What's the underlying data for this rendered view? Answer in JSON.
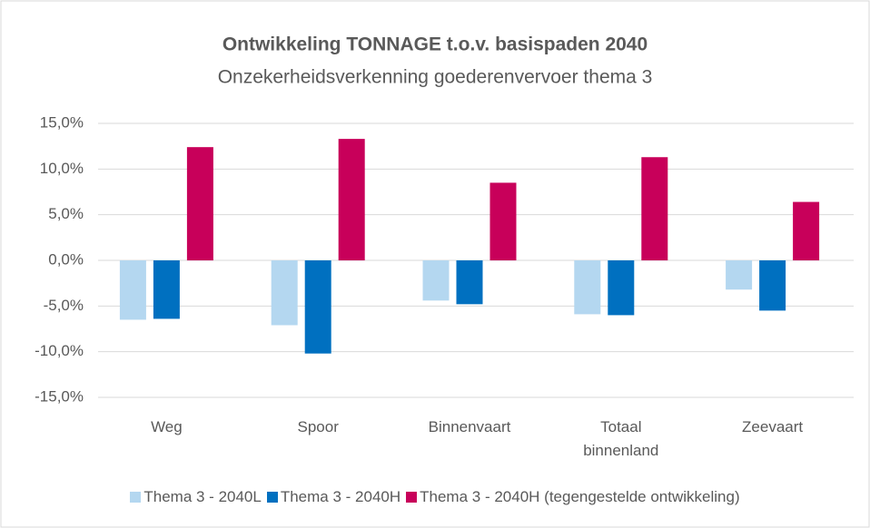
{
  "chart_data": {
    "type": "bar",
    "title": "Ontwikkeling TONNAGE t.o.v. basispaden 2040",
    "subtitle": "Onzekerheidsverkenning goederenvervoer thema 3",
    "categories": [
      "Weg",
      "Spoor",
      "Binnenvaart",
      "Totaal binnenland",
      "Zeevaart"
    ],
    "series": [
      {
        "name": "Thema 3 - 2040L",
        "color": "#b4d7f0",
        "values": [
          -6.5,
          -7.1,
          -4.4,
          -5.9,
          -3.2
        ]
      },
      {
        "name": "Thema 3 - 2040H",
        "color": "#0070c0",
        "values": [
          -6.4,
          -10.2,
          -4.8,
          -6.0,
          -5.5
        ]
      },
      {
        "name": "Thema 3 - 2040H (tegengestelde ontwikkeling)",
        "color": "#c8005a",
        "values": [
          12.4,
          13.3,
          8.5,
          11.3,
          6.4
        ]
      }
    ],
    "ylim": [
      -15,
      15
    ],
    "yticks": [
      {
        "value": -15,
        "label": "-15,0%"
      },
      {
        "value": -10,
        "label": "-10,0%"
      },
      {
        "value": -5,
        "label": "-5,0%"
      },
      {
        "value": 0,
        "label": "0,0%"
      },
      {
        "value": 5,
        "label": "5,0%"
      },
      {
        "value": 10,
        "label": "10,0%"
      },
      {
        "value": 15,
        "label": "15,0%"
      }
    ],
    "grid": true,
    "legend": "bottom"
  }
}
